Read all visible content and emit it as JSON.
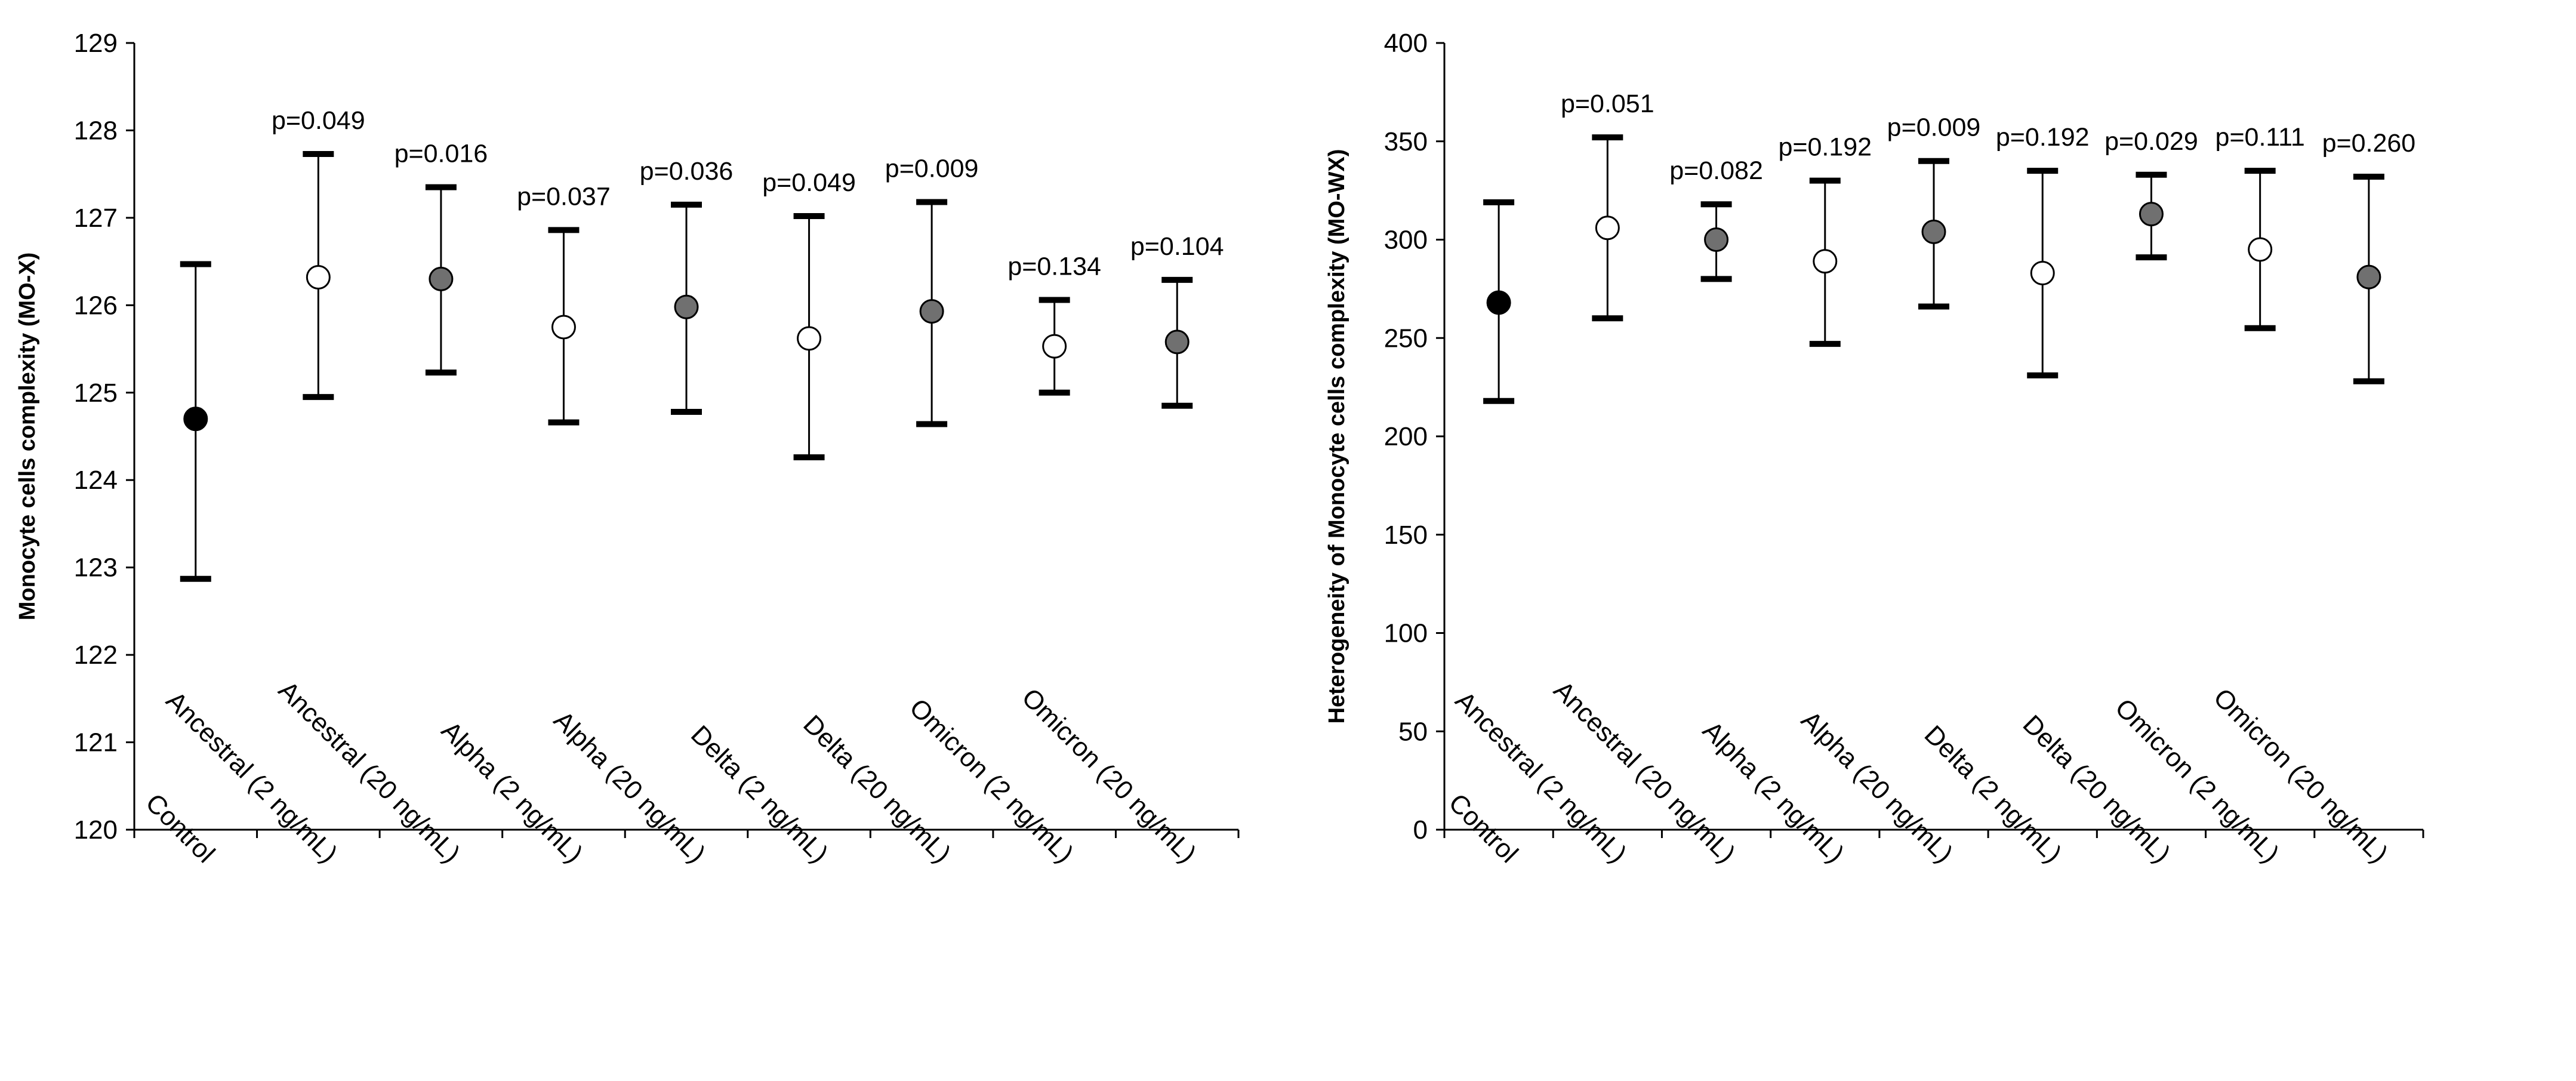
{
  "chart_data": [
    {
      "type": "scatter",
      "subtype": "dot-with-error-bars",
      "ylabel": "Monocyte cells complexity (MO-X)",
      "xlabel": "",
      "ylim": [
        120,
        129
      ],
      "yticks": [
        120,
        121,
        122,
        123,
        124,
        125,
        126,
        127,
        128,
        129
      ],
      "grid": false,
      "categories": [
        "Control",
        "Ancestral (2 ng/mL)",
        "Ancestral (20 ng/mL)",
        "Alpha (2 ng/mL)",
        "Alpha (20 ng/mL)",
        "Delta (2 ng/mL)",
        "Delta (20 ng/mL)",
        "Omicron (2 ng/mL)",
        "Omicron (20 ng/mL)"
      ],
      "values": [
        124.7,
        126.32,
        126.3,
        125.75,
        125.98,
        125.62,
        125.93,
        125.53,
        125.58
      ],
      "error_low": [
        122.87,
        124.95,
        125.23,
        124.66,
        124.78,
        124.26,
        124.64,
        125.0,
        124.85
      ],
      "error_high": [
        126.47,
        127.73,
        127.35,
        126.86,
        127.15,
        127.02,
        127.18,
        126.06,
        126.29
      ],
      "marker_fill": [
        "#000000",
        "#ffffff",
        "#707070",
        "#ffffff",
        "#707070",
        "#ffffff",
        "#707070",
        "#ffffff",
        "#707070"
      ],
      "annotations": [
        "",
        "p=0.049",
        "p=0.016",
        "p=0.037",
        "p=0.036",
        "p=0.049",
        "p=0.009",
        "p=0.134",
        "p=0.104"
      ]
    },
    {
      "type": "scatter",
      "subtype": "dot-with-error-bars",
      "ylabel": "Heterogeneity of Monocyte cells complexity (MO-WX)",
      "xlabel": "",
      "ylim": [
        0,
        400
      ],
      "yticks": [
        0,
        50,
        100,
        150,
        200,
        250,
        300,
        350,
        400
      ],
      "grid": false,
      "categories": [
        "Control",
        "Ancestral (2 ng/mL)",
        "Ancestral (20 ng/mL)",
        "Alpha (2 ng/mL)",
        "Alpha (20 ng/mL)",
        "Delta (2 ng/mL)",
        "Delta (20 ng/mL)",
        "Omicron (2 ng/mL)",
        "Omicron (20 ng/mL)"
      ],
      "values": [
        268,
        306,
        300,
        289,
        304,
        283,
        313,
        295,
        281
      ],
      "error_low": [
        218,
        260,
        280,
        247,
        266,
        231,
        291,
        255,
        228
      ],
      "error_high": [
        319,
        352,
        318,
        330,
        340,
        335,
        333,
        335,
        332
      ],
      "marker_fill": [
        "#000000",
        "#ffffff",
        "#707070",
        "#ffffff",
        "#707070",
        "#ffffff",
        "#707070",
        "#ffffff",
        "#707070"
      ],
      "annotations": [
        "",
        "p=0.051",
        "p=0.082",
        "p=0.192",
        "p=0.009",
        "p=0.192",
        "p=0.029",
        "p=0.111",
        "p=0.260"
      ]
    }
  ]
}
